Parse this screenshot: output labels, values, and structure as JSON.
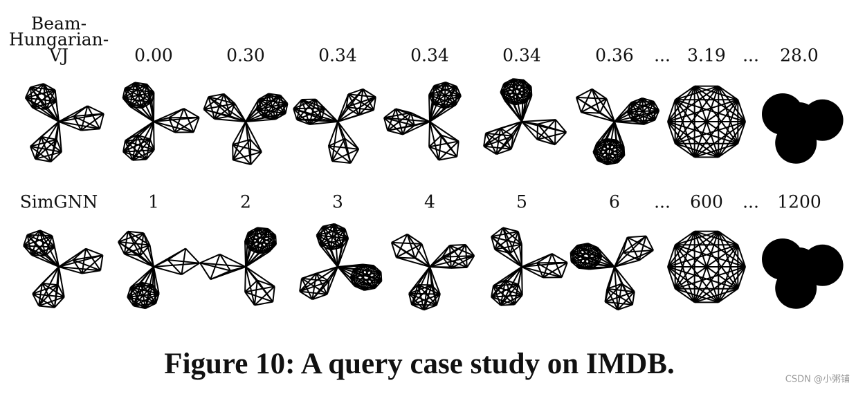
{
  "rows": [
    {
      "label": [
        "Beam-",
        "Hungarian-",
        "VJ"
      ],
      "items": [
        "0.00",
        "0.30",
        "0.34",
        "0.34",
        "0.34",
        "0.36",
        "...",
        "3.19",
        "...",
        "28.0"
      ]
    },
    {
      "label": [
        "SimGNN"
      ],
      "items": [
        "1",
        "2",
        "3",
        "4",
        "5",
        "6",
        "...",
        "600",
        "...",
        "1200"
      ]
    }
  ],
  "caption": "Figure 10: A query case study on IMDB.",
  "watermark": "CSDN @小粥铺"
}
